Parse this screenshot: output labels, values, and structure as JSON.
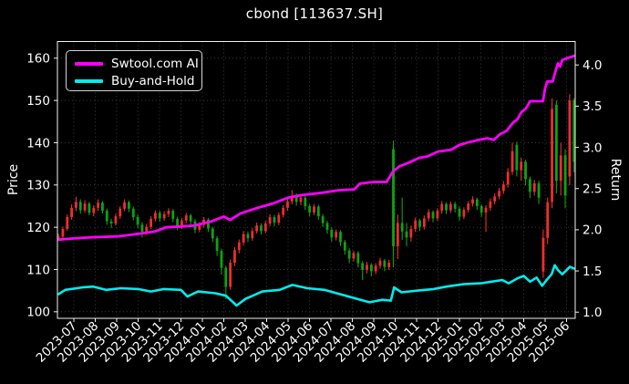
{
  "chart_data": {
    "type": "candlestick",
    "title": "cbond [113637.SH]",
    "ylabel_left": "Price",
    "ylabel_right": "Return",
    "background": "#000000",
    "grid": true,
    "legend": {
      "position": "upper-left",
      "entries": [
        {
          "label": "Swtool.com AI",
          "color": "#ff00ff"
        },
        {
          "label": "Buy-and-Hold",
          "color": "#00eded"
        }
      ]
    },
    "colors": {
      "up_candle": "#ef2d2d",
      "down_candle": "#0fa30f",
      "ai_line": "#ff00ff",
      "bh_line": "#00eded",
      "grid": "#4a4a4a",
      "spine": "#f2f2f2",
      "text": "#ffffff"
    },
    "x_tick_labels": [
      "2023-07",
      "2023-08",
      "2023-09",
      "2023-10",
      "2023-11",
      "2023-12",
      "2024-01",
      "2024-02",
      "2024-03",
      "2024-04",
      "2024-05",
      "2024-06",
      "2024-07",
      "2024-08",
      "2024-09",
      "2024-10",
      "2024-11",
      "2024-12",
      "2025-01",
      "2025-02",
      "2025-03",
      "2025-04",
      "2025-05",
      "2025-06"
    ],
    "y_left": {
      "ticks": [
        100,
        110,
        120,
        130,
        140,
        150,
        160
      ],
      "range": [
        98.45,
        163.95
      ]
    },
    "y_right": {
      "ticks": [
        "1.0",
        "1.5",
        "2.0",
        "2.5",
        "3.0",
        "3.5",
        "4.0"
      ],
      "range": [
        0.925,
        4.285
      ]
    },
    "candles_m_start": -0.72,
    "candles_m_end": 23.35,
    "candles_ohlc": [
      [
        117.2,
        118.4,
        116.8,
        117.8
      ],
      [
        117.8,
        120.2,
        117.4,
        119.6
      ],
      [
        119.6,
        123.0,
        119.2,
        122.4
      ],
      [
        122.4,
        125.4,
        121.8,
        124.6
      ],
      [
        124.6,
        127.2,
        123.8,
        126.0
      ],
      [
        126.0,
        126.6,
        123.2,
        124.0
      ],
      [
        124.0,
        126.4,
        123.4,
        125.6
      ],
      [
        125.6,
        126.0,
        122.8,
        123.4
      ],
      [
        123.4,
        125.2,
        122.6,
        124.6
      ],
      [
        124.6,
        126.6,
        123.9,
        125.8
      ],
      [
        125.8,
        126.2,
        123.2,
        123.9
      ],
      [
        123.9,
        124.4,
        120.6,
        121.4
      ],
      [
        121.4,
        122.0,
        119.8,
        120.9
      ],
      [
        120.9,
        123.2,
        120.4,
        122.6
      ],
      [
        122.6,
        125.0,
        122.0,
        124.4
      ],
      [
        124.4,
        126.6,
        123.8,
        125.9
      ],
      [
        125.9,
        126.3,
        123.6,
        124.4
      ],
      [
        124.4,
        124.9,
        121.6,
        122.4
      ],
      [
        122.4,
        123.0,
        119.8,
        120.6
      ],
      [
        120.6,
        121.2,
        117.6,
        118.9
      ],
      [
        118.9,
        120.8,
        118.2,
        120.1
      ],
      [
        120.1,
        122.6,
        119.6,
        122.0
      ],
      [
        122.0,
        124.0,
        121.4,
        123.4
      ],
      [
        123.4,
        123.9,
        121.3,
        122.1
      ],
      [
        122.1,
        123.8,
        121.5,
        123.1
      ],
      [
        123.1,
        124.5,
        122.4,
        123.9
      ],
      [
        123.9,
        124.3,
        121.2,
        122.0
      ],
      [
        122.0,
        122.5,
        119.3,
        120.1
      ],
      [
        120.1,
        122.2,
        119.6,
        121.6
      ],
      [
        121.6,
        123.4,
        120.9,
        122.8
      ],
      [
        122.8,
        123.2,
        120.6,
        121.4
      ],
      [
        121.4,
        121.9,
        118.6,
        119.4
      ],
      [
        119.4,
        121.2,
        118.8,
        120.6
      ],
      [
        120.6,
        122.4,
        119.9,
        121.8
      ],
      [
        121.8,
        122.2,
        118.9,
        119.7
      ],
      [
        119.7,
        120.1,
        116.5,
        117.4
      ],
      [
        117.4,
        117.9,
        113.2,
        114.4
      ],
      [
        114.4,
        114.9,
        108.8,
        110.4
      ],
      [
        110.4,
        110.9,
        103.0,
        105.9
      ],
      [
        105.9,
        112.4,
        105.2,
        111.6
      ],
      [
        111.6,
        115.3,
        110.8,
        114.6
      ],
      [
        114.6,
        117.1,
        113.8,
        116.4
      ],
      [
        116.4,
        119.1,
        115.7,
        118.4
      ],
      [
        118.4,
        119.0,
        116.5,
        117.4
      ],
      [
        117.4,
        119.8,
        116.8,
        119.1
      ],
      [
        119.1,
        121.1,
        118.5,
        120.4
      ],
      [
        120.4,
        120.9,
        118.3,
        119.1
      ],
      [
        119.1,
        121.5,
        118.6,
        120.9
      ],
      [
        120.9,
        123.1,
        120.3,
        122.4
      ],
      [
        122.4,
        122.9,
        120.2,
        121.1
      ],
      [
        121.1,
        123.5,
        120.5,
        122.9
      ],
      [
        122.9,
        125.2,
        122.3,
        124.6
      ],
      [
        124.6,
        126.8,
        123.9,
        126.1
      ],
      [
        126.1,
        128.8,
        125.4,
        127.4
      ],
      [
        127.4,
        128.0,
        125.1,
        126.0
      ],
      [
        126.0,
        127.7,
        125.2,
        127.0
      ],
      [
        127.0,
        127.4,
        124.1,
        125.0
      ],
      [
        125.0,
        125.5,
        122.6,
        123.5
      ],
      [
        123.5,
        125.5,
        122.9,
        124.9
      ],
      [
        124.9,
        125.3,
        121.8,
        122.6
      ],
      [
        122.6,
        123.1,
        120.1,
        121.0
      ],
      [
        121.0,
        121.5,
        118.5,
        119.4
      ],
      [
        119.4,
        119.9,
        116.6,
        117.6
      ],
      [
        117.6,
        119.5,
        116.9,
        118.9
      ],
      [
        118.9,
        119.3,
        115.6,
        116.5
      ],
      [
        116.5,
        117.0,
        113.5,
        114.5
      ],
      [
        114.5,
        115.0,
        111.5,
        112.6
      ],
      [
        112.6,
        114.5,
        111.9,
        113.9
      ],
      [
        113.9,
        114.3,
        110.5,
        111.5
      ],
      [
        111.5,
        112.0,
        107.5,
        109.9
      ],
      [
        109.9,
        111.8,
        109.1,
        111.1
      ],
      [
        111.1,
        111.5,
        108.4,
        109.6
      ],
      [
        109.6,
        111.5,
        108.9,
        110.9
      ],
      [
        110.9,
        112.8,
        110.2,
        112.1
      ],
      [
        112.1,
        112.5,
        109.6,
        110.6
      ],
      [
        110.6,
        112.3,
        109.9,
        111.6
      ],
      [
        138.5,
        140.5,
        110.5,
        115.5
      ],
      [
        115.5,
        123.0,
        112.5,
        121.0
      ],
      [
        121.0,
        127.0,
        117.0,
        119.0
      ],
      [
        119.0,
        121.0,
        115.5,
        117.6
      ],
      [
        117.6,
        120.4,
        116.6,
        119.6
      ],
      [
        119.6,
        122.3,
        118.9,
        121.6
      ],
      [
        121.6,
        122.0,
        119.1,
        120.1
      ],
      [
        120.1,
        122.8,
        119.5,
        122.1
      ],
      [
        122.1,
        124.3,
        121.4,
        123.6
      ],
      [
        123.6,
        124.0,
        121.2,
        122.1
      ],
      [
        122.1,
        124.5,
        121.5,
        123.9
      ],
      [
        123.9,
        126.2,
        123.2,
        125.5
      ],
      [
        125.5,
        125.9,
        123.1,
        124.0
      ],
      [
        124.0,
        126.1,
        123.4,
        125.5
      ],
      [
        125.5,
        126.0,
        123.5,
        124.4
      ],
      [
        124.4,
        124.9,
        121.6,
        122.5
      ],
      [
        122.5,
        124.7,
        121.9,
        124.1
      ],
      [
        124.1,
        126.2,
        123.5,
        125.6
      ],
      [
        125.6,
        127.3,
        124.9,
        126.6
      ],
      [
        126.6,
        127.0,
        124.1,
        125.0
      ],
      [
        125.0,
        125.4,
        122.5,
        123.5
      ],
      [
        123.5,
        125.2,
        118.9,
        124.6
      ],
      [
        124.6,
        126.8,
        123.9,
        126.1
      ],
      [
        126.1,
        128.0,
        125.4,
        127.3
      ],
      [
        127.3,
        129.3,
        126.6,
        128.6
      ],
      [
        128.6,
        130.9,
        127.9,
        130.1
      ],
      [
        130.1,
        134.0,
        129.4,
        133.1
      ],
      [
        133.1,
        140.0,
        132.4,
        138.0
      ],
      [
        139.5,
        140.2,
        132.0,
        133.5
      ],
      [
        133.5,
        136.5,
        131.0,
        135.5
      ],
      [
        135.5,
        136.0,
        129.9,
        131.4
      ],
      [
        131.4,
        132.0,
        126.9,
        128.4
      ],
      [
        128.4,
        131.2,
        127.5,
        130.4
      ],
      [
        130.4,
        131.0,
        125.5,
        127.0
      ],
      [
        109.5,
        119.5,
        108.0,
        117.5
      ],
      [
        117.5,
        127.0,
        116.0,
        125.9
      ],
      [
        126.0,
        150.5,
        124.5,
        148.0
      ],
      [
        149.0,
        150.0,
        128.0,
        131.0
      ],
      [
        131.0,
        140.0,
        127.5,
        137.0
      ],
      [
        137.0,
        138.5,
        124.5,
        127.5
      ],
      [
        132.0,
        151.5,
        130.0,
        150.0
      ],
      [
        150.0,
        150.5,
        133.0,
        135.5
      ]
    ],
    "ai_return_line": [
      [
        -0.7,
        1.88
      ],
      [
        0.3,
        1.9
      ],
      [
        1.0,
        1.91
      ],
      [
        2.1,
        1.92
      ],
      [
        3.0,
        1.95
      ],
      [
        3.8,
        1.98
      ],
      [
        4.3,
        2.03
      ],
      [
        5.0,
        2.04
      ],
      [
        5.6,
        2.05
      ],
      [
        6.4,
        2.1
      ],
      [
        7.0,
        2.16
      ],
      [
        7.3,
        2.12
      ],
      [
        7.8,
        2.2
      ],
      [
        8.5,
        2.26
      ],
      [
        9.3,
        2.32
      ],
      [
        10.0,
        2.39
      ],
      [
        10.6,
        2.42
      ],
      [
        11.6,
        2.45
      ],
      [
        12.4,
        2.48
      ],
      [
        13.1,
        2.49
      ],
      [
        13.35,
        2.56
      ],
      [
        14.0,
        2.58
      ],
      [
        14.6,
        2.58
      ],
      [
        14.9,
        2.71
      ],
      [
        15.2,
        2.77
      ],
      [
        15.6,
        2.81
      ],
      [
        16.1,
        2.87
      ],
      [
        16.5,
        2.89
      ],
      [
        17.0,
        2.95
      ],
      [
        17.6,
        2.97
      ],
      [
        18.0,
        3.03
      ],
      [
        18.4,
        3.06
      ],
      [
        18.9,
        3.09
      ],
      [
        19.3,
        3.11
      ],
      [
        19.6,
        3.09
      ],
      [
        19.9,
        3.16
      ],
      [
        20.2,
        3.2
      ],
      [
        20.5,
        3.3
      ],
      [
        20.7,
        3.34
      ],
      [
        20.9,
        3.43
      ],
      [
        21.1,
        3.47
      ],
      [
        21.3,
        3.56
      ],
      [
        21.9,
        3.56
      ],
      [
        22.0,
        3.72
      ],
      [
        22.1,
        3.8
      ],
      [
        22.35,
        3.8
      ],
      [
        22.5,
        3.94
      ],
      [
        22.6,
        4.02
      ],
      [
        22.7,
        3.98
      ],
      [
        22.8,
        4.06
      ],
      [
        23.0,
        4.08
      ],
      [
        23.35,
        4.11
      ]
    ],
    "bh_return_line": [
      [
        -0.7,
        1.22
      ],
      [
        -0.4,
        1.27
      ],
      [
        0.4,
        1.3
      ],
      [
        0.9,
        1.31
      ],
      [
        1.5,
        1.27
      ],
      [
        2.2,
        1.29
      ],
      [
        3.0,
        1.28
      ],
      [
        3.6,
        1.25
      ],
      [
        4.2,
        1.28
      ],
      [
        5.0,
        1.27
      ],
      [
        5.3,
        1.19
      ],
      [
        5.8,
        1.25
      ],
      [
        6.6,
        1.23
      ],
      [
        7.1,
        1.2
      ],
      [
        7.6,
        1.08
      ],
      [
        8.0,
        1.16
      ],
      [
        8.8,
        1.25
      ],
      [
        9.6,
        1.27
      ],
      [
        10.2,
        1.33
      ],
      [
        10.9,
        1.29
      ],
      [
        11.7,
        1.27
      ],
      [
        12.4,
        1.22
      ],
      [
        13.1,
        1.17
      ],
      [
        13.8,
        1.12
      ],
      [
        14.4,
        1.15
      ],
      [
        14.8,
        1.14
      ],
      [
        14.95,
        1.3
      ],
      [
        15.3,
        1.24
      ],
      [
        16.0,
        1.26
      ],
      [
        16.8,
        1.28
      ],
      [
        17.4,
        1.31
      ],
      [
        18.2,
        1.34
      ],
      [
        19.0,
        1.35
      ],
      [
        19.5,
        1.37
      ],
      [
        20.0,
        1.39
      ],
      [
        20.3,
        1.35
      ],
      [
        20.7,
        1.41
      ],
      [
        21.0,
        1.44
      ],
      [
        21.3,
        1.37
      ],
      [
        21.6,
        1.42
      ],
      [
        21.86,
        1.32
      ],
      [
        22.1,
        1.4
      ],
      [
        22.3,
        1.46
      ],
      [
        22.45,
        1.57
      ],
      [
        22.6,
        1.51
      ],
      [
        22.8,
        1.46
      ],
      [
        23.0,
        1.51
      ],
      [
        23.15,
        1.55
      ],
      [
        23.35,
        1.53
      ]
    ]
  }
}
